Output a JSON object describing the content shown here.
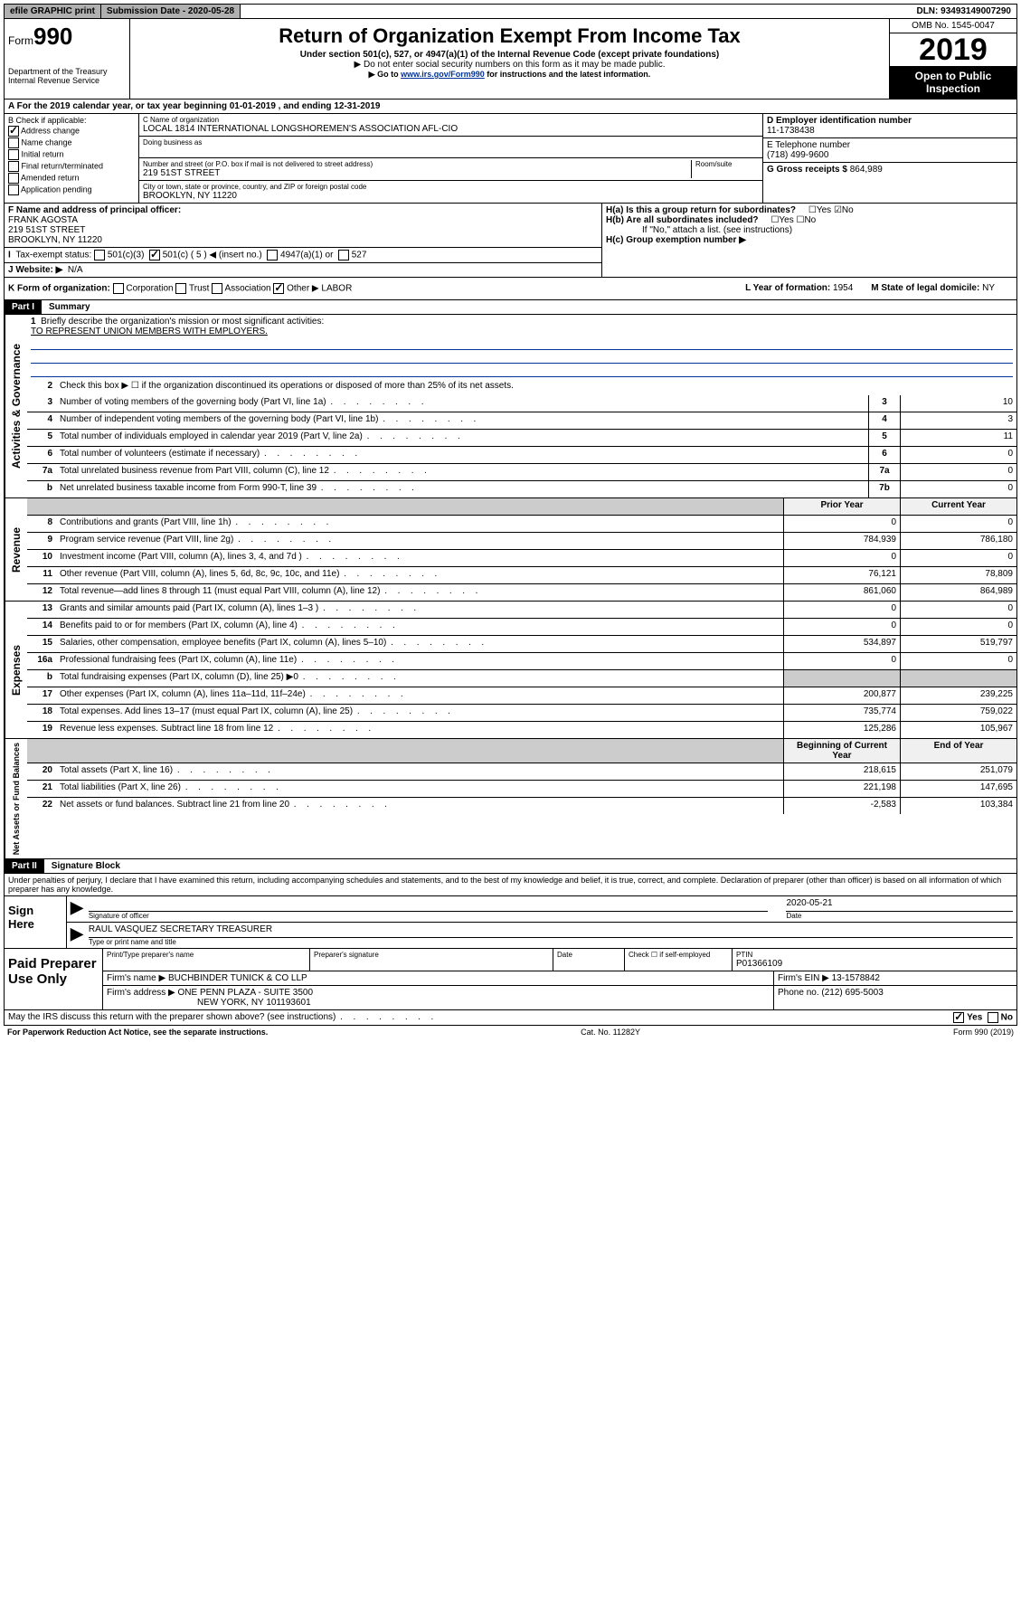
{
  "topbar": {
    "efile": "efile GRAPHIC print",
    "submission_label": "Submission Date - 2020-05-28",
    "dln": "DLN: 93493149007290"
  },
  "header": {
    "form_prefix": "Form",
    "form_number": "990",
    "dept": "Department of the Treasury\nInternal Revenue Service",
    "title": "Return of Organization Exempt From Income Tax",
    "subtitle": "Under section 501(c), 527, or 4947(a)(1) of the Internal Revenue Code (except private foundations)",
    "note1": "▶ Do not enter social security numbers on this form as it may be made public.",
    "note2_pre": "▶ Go to ",
    "note2_link": "www.irs.gov/Form990",
    "note2_post": " for instructions and the latest information.",
    "omb": "OMB No. 1545-0047",
    "year": "2019",
    "open": "Open to Public Inspection"
  },
  "period": "A For the 2019 calendar year, or tax year beginning 01-01-2019   , and ending 12-31-2019",
  "box_b": {
    "label": "B Check if applicable:",
    "items": [
      "Address change",
      "Name change",
      "Initial return",
      "Final return/terminated",
      "Amended return",
      "Application pending"
    ],
    "checked_index": 0
  },
  "box_c": {
    "name_label": "C Name of organization",
    "name": "LOCAL 1814 INTERNATIONAL LONGSHOREMEN'S ASSOCIATION AFL-CIO",
    "dba_label": "Doing business as",
    "addr_label": "Number and street (or P.O. box if mail is not delivered to street address)",
    "room_label": "Room/suite",
    "addr": "219 51ST STREET",
    "city_label": "City or town, state or province, country, and ZIP or foreign postal code",
    "city": "BROOKLYN, NY  11220"
  },
  "box_d": {
    "label": "D Employer identification number",
    "value": "11-1738438"
  },
  "box_e": {
    "label": "E Telephone number",
    "value": "(718) 499-9600"
  },
  "box_g": {
    "label": "G Gross receipts $",
    "value": "864,989"
  },
  "box_f": {
    "label": "F  Name and address of principal officer:",
    "name": "FRANK AGOSTA",
    "addr1": "219 51ST STREET",
    "addr2": "BROOKLYN, NY  11220"
  },
  "box_h": {
    "a": "H(a)  Is this a group return for subordinates?",
    "b": "H(b)  Are all subordinates included?",
    "b_note": "If \"No,\" attach a list. (see instructions)",
    "c": "H(c)  Group exemption number ▶"
  },
  "box_i": {
    "label": "Tax-exempt status:",
    "opts": [
      "501(c)(3)",
      "501(c) ( 5 ) ◀ (insert no.)",
      "4947(a)(1) or",
      "527"
    ]
  },
  "box_j": {
    "label": "J   Website: ▶",
    "value": "N/A"
  },
  "box_k": {
    "label": "K Form of organization:",
    "opts": [
      "Corporation",
      "Trust",
      "Association",
      "Other ▶"
    ],
    "other_value": "LABOR"
  },
  "box_l": {
    "label": "L Year of formation:",
    "value": "1954"
  },
  "box_m": {
    "label": "M State of legal domicile:",
    "value": "NY"
  },
  "part1": {
    "header": "Part I",
    "title": "Summary",
    "q1": "Briefly describe the organization's mission or most significant activities:",
    "mission": "TO REPRESENT UNION MEMBERS WITH EMPLOYERS.",
    "q2": "Check this box ▶ ☐  if the organization discontinued its operations or disposed of more than 25% of its net assets."
  },
  "governance": {
    "label": "Activities & Governance",
    "rows": [
      {
        "n": "3",
        "d": "Number of voting members of the governing body (Part VI, line 1a)",
        "box": "3",
        "v": "10"
      },
      {
        "n": "4",
        "d": "Number of independent voting members of the governing body (Part VI, line 1b)",
        "box": "4",
        "v": "3"
      },
      {
        "n": "5",
        "d": "Total number of individuals employed in calendar year 2019 (Part V, line 2a)",
        "box": "5",
        "v": "11"
      },
      {
        "n": "6",
        "d": "Total number of volunteers (estimate if necessary)",
        "box": "6",
        "v": "0"
      },
      {
        "n": "7a",
        "d": "Total unrelated business revenue from Part VIII, column (C), line 12",
        "box": "7a",
        "v": "0"
      },
      {
        "n": "b",
        "d": "Net unrelated business taxable income from Form 990-T, line 39",
        "box": "7b",
        "v": "0"
      }
    ]
  },
  "revenue": {
    "label": "Revenue",
    "header": {
      "prior": "Prior Year",
      "current": "Current Year"
    },
    "rows": [
      {
        "n": "8",
        "d": "Contributions and grants (Part VIII, line 1h)",
        "p": "0",
        "c": "0"
      },
      {
        "n": "9",
        "d": "Program service revenue (Part VIII, line 2g)",
        "p": "784,939",
        "c": "786,180"
      },
      {
        "n": "10",
        "d": "Investment income (Part VIII, column (A), lines 3, 4, and 7d )",
        "p": "0",
        "c": "0"
      },
      {
        "n": "11",
        "d": "Other revenue (Part VIII, column (A), lines 5, 6d, 8c, 9c, 10c, and 11e)",
        "p": "76,121",
        "c": "78,809"
      },
      {
        "n": "12",
        "d": "Total revenue—add lines 8 through 11 (must equal Part VIII, column (A), line 12)",
        "p": "861,060",
        "c": "864,989"
      }
    ]
  },
  "expenses": {
    "label": "Expenses",
    "rows": [
      {
        "n": "13",
        "d": "Grants and similar amounts paid (Part IX, column (A), lines 1–3 )",
        "p": "0",
        "c": "0"
      },
      {
        "n": "14",
        "d": "Benefits paid to or for members (Part IX, column (A), line 4)",
        "p": "0",
        "c": "0"
      },
      {
        "n": "15",
        "d": "Salaries, other compensation, employee benefits (Part IX, column (A), lines 5–10)",
        "p": "534,897",
        "c": "519,797"
      },
      {
        "n": "16a",
        "d": "Professional fundraising fees (Part IX, column (A), line 11e)",
        "p": "0",
        "c": "0"
      },
      {
        "n": "b",
        "d": "Total fundraising expenses (Part IX, column (D), line 25) ▶0",
        "p": "",
        "c": ""
      },
      {
        "n": "17",
        "d": "Other expenses (Part IX, column (A), lines 11a–11d, 11f–24e)",
        "p": "200,877",
        "c": "239,225"
      },
      {
        "n": "18",
        "d": "Total expenses. Add lines 13–17 (must equal Part IX, column (A), line 25)",
        "p": "735,774",
        "c": "759,022"
      },
      {
        "n": "19",
        "d": "Revenue less expenses. Subtract line 18 from line 12",
        "p": "125,286",
        "c": "105,967"
      }
    ]
  },
  "netassets": {
    "label": "Net Assets or Fund Balances",
    "header": {
      "prior": "Beginning of Current Year",
      "current": "End of Year"
    },
    "rows": [
      {
        "n": "20",
        "d": "Total assets (Part X, line 16)",
        "p": "218,615",
        "c": "251,079"
      },
      {
        "n": "21",
        "d": "Total liabilities (Part X, line 26)",
        "p": "221,198",
        "c": "147,695"
      },
      {
        "n": "22",
        "d": "Net assets or fund balances. Subtract line 21 from line 20",
        "p": "-2,583",
        "c": "103,384"
      }
    ]
  },
  "part2": {
    "header": "Part II",
    "title": "Signature Block",
    "perjury": "Under penalties of perjury, I declare that I have examined this return, including accompanying schedules and statements, and to the best of my knowledge and belief, it is true, correct, and complete. Declaration of preparer (other than officer) is based on all information of which preparer has any knowledge."
  },
  "sign": {
    "left": "Sign Here",
    "sig_label": "Signature of officer",
    "date": "2020-05-21",
    "date_label": "Date",
    "name": "RAUL VASQUEZ  SECRETARY TREASURER",
    "name_label": "Type or print name and title"
  },
  "paid": {
    "left": "Paid Preparer Use Only",
    "h1": "Print/Type preparer's name",
    "h2": "Preparer's signature",
    "h3": "Date",
    "h4_check": "Check ☐ if self-employed",
    "h5": "PTIN",
    "ptin": "P01366109",
    "firm_name_label": "Firm's name      ▶",
    "firm_name": "BUCHBINDER TUNICK & CO LLP",
    "firm_ein_label": "Firm's EIN ▶",
    "firm_ein": "13-1578842",
    "firm_addr_label": "Firm's address ▶",
    "firm_addr1": "ONE PENN PLAZA - SUITE 3500",
    "firm_addr2": "NEW YORK, NY  101193601",
    "phone_label": "Phone no.",
    "phone": "(212) 695-5003"
  },
  "discuss": {
    "q": "May the IRS discuss this return with the preparer shown above? (see instructions)",
    "yes": "Yes",
    "no": "No"
  },
  "footer": {
    "left": "For Paperwork Reduction Act Notice, see the separate instructions.",
    "mid": "Cat. No. 11282Y",
    "right": "Form 990 (2019)"
  }
}
